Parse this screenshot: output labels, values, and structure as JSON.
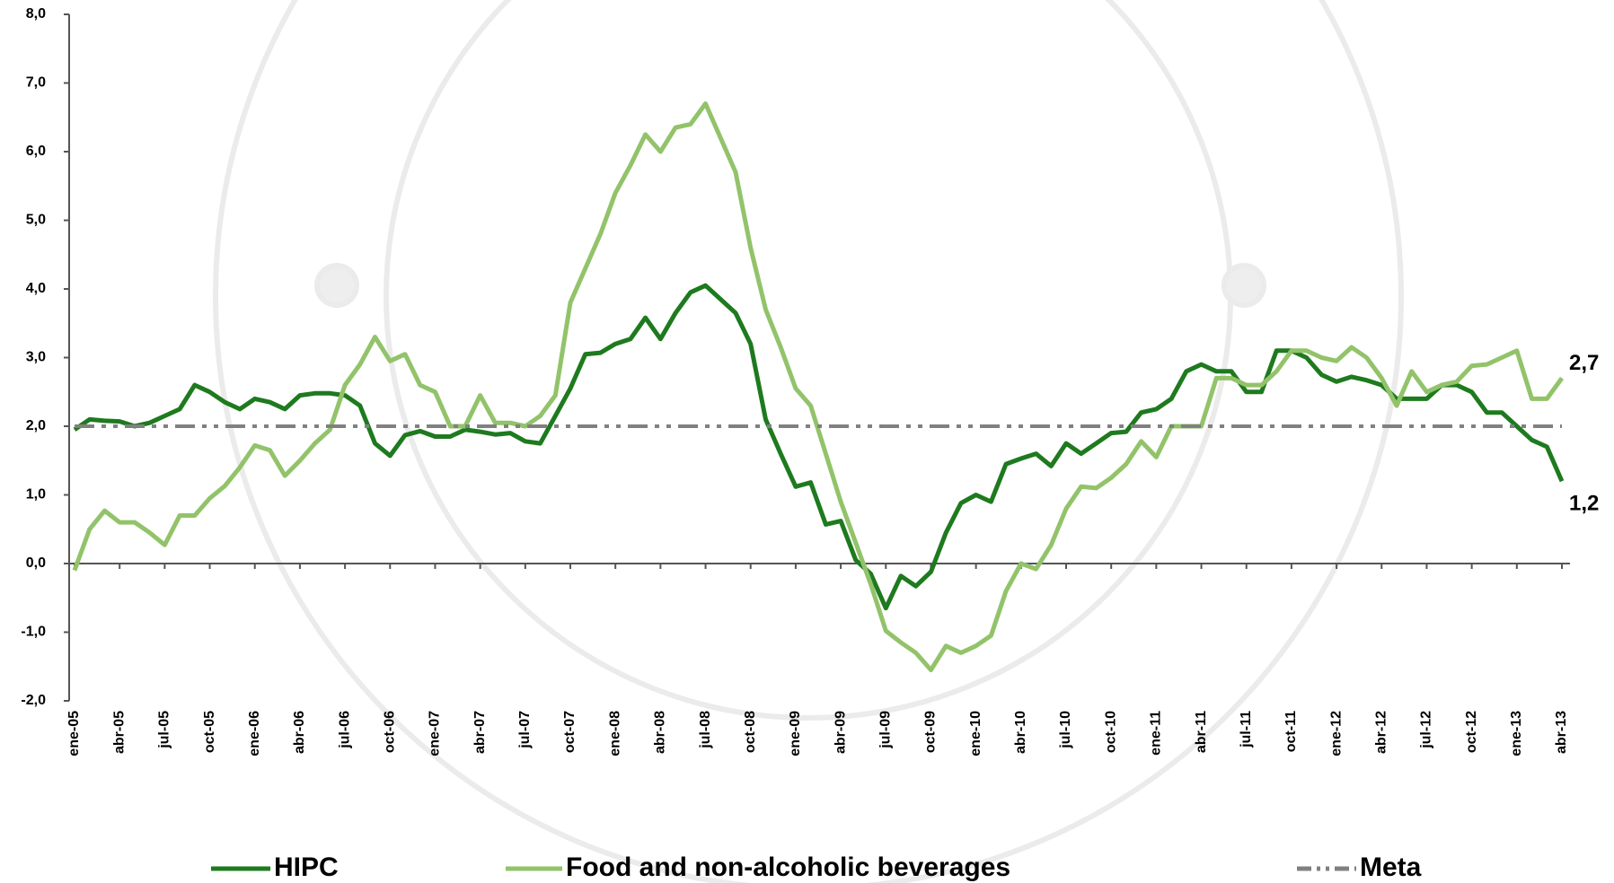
{
  "chart_data": {
    "type": "line",
    "categories": [
      "ene-05",
      null,
      null,
      "abr-05",
      null,
      null,
      "jul-05",
      null,
      null,
      "oct-05",
      null,
      null,
      "ene-06",
      null,
      null,
      "abr-06",
      null,
      null,
      "jul-06",
      null,
      null,
      "oct-06",
      null,
      null,
      "ene-07",
      null,
      null,
      "abr-07",
      null,
      null,
      "jul-07",
      null,
      null,
      "oct-07",
      null,
      null,
      "ene-08",
      null,
      null,
      "abr-08",
      null,
      null,
      "jul-08",
      null,
      null,
      "oct-08",
      null,
      null,
      "ene-09",
      null,
      null,
      "abr-09",
      null,
      null,
      "jul-09",
      null,
      null,
      "oct-09",
      null,
      null,
      "ene-10",
      null,
      null,
      "abr-10",
      null,
      null,
      "jul-10",
      null,
      null,
      "oct-10",
      null,
      null,
      "ene-11",
      null,
      null,
      "abr-11",
      null,
      null,
      "jul-11",
      null,
      null,
      "oct-11",
      null,
      null,
      "ene-12",
      null,
      null,
      "abr-12",
      null,
      null,
      "jul-12",
      null,
      null,
      "oct-12",
      null,
      null,
      "ene-13",
      null,
      null,
      "abr-13"
    ],
    "series": [
      {
        "name": "HIPC",
        "color": "#1e7a1e",
        "dash": false,
        "values": [
          1.95,
          2.1,
          2.08,
          2.07,
          2.0,
          2.05,
          2.15,
          2.25,
          2.6,
          2.5,
          2.35,
          2.25,
          2.4,
          2.35,
          2.25,
          2.45,
          2.48,
          2.48,
          2.45,
          2.3,
          1.75,
          1.57,
          1.87,
          1.93,
          1.85,
          1.85,
          1.95,
          1.92,
          1.88,
          1.9,
          1.78,
          1.75,
          2.15,
          2.55,
          3.05,
          3.07,
          3.2,
          3.27,
          3.58,
          3.27,
          3.65,
          3.95,
          4.05,
          3.85,
          3.65,
          3.2,
          2.1,
          1.6,
          1.12,
          1.18,
          0.57,
          0.62,
          0.05,
          -0.15,
          -0.65,
          -0.18,
          -0.33,
          -0.12,
          0.45,
          0.88,
          1.0,
          0.9,
          1.45,
          1.53,
          1.6,
          1.42,
          1.75,
          1.6,
          1.75,
          1.9,
          1.92,
          2.2,
          2.25,
          2.4,
          2.8,
          2.9,
          2.8,
          2.8,
          2.5,
          2.5,
          3.1,
          3.1,
          3.0,
          2.75,
          2.65,
          2.72,
          2.67,
          2.6,
          2.4,
          2.4,
          2.4,
          2.6,
          2.6,
          2.5,
          2.2,
          2.2,
          2.0,
          1.8,
          1.7,
          1.2
        ],
        "value_labels": [
          null,
          null,
          null,
          null,
          null,
          null,
          null,
          null,
          null,
          null,
          null,
          null,
          null,
          null,
          null,
          null,
          null,
          null,
          null,
          null,
          null,
          null,
          null,
          null,
          null,
          null,
          null,
          null,
          null,
          null,
          null,
          null,
          null,
          null,
          null,
          null,
          null,
          null,
          null,
          null,
          null,
          null,
          null,
          null,
          null,
          null,
          null,
          null,
          null,
          null,
          null,
          null,
          null,
          null,
          null,
          null,
          null,
          null,
          null,
          null,
          null,
          null,
          null,
          null,
          null,
          null,
          null,
          null,
          null,
          null,
          null,
          null,
          null,
          null,
          null,
          null,
          null,
          null,
          null,
          null,
          null,
          null,
          null,
          null,
          null,
          null,
          null,
          null,
          null,
          null,
          null,
          null,
          null,
          null,
          null,
          null,
          null,
          null,
          null,
          "1,2"
        ]
      },
      {
        "name": "Food and non-alcoholic beverages",
        "color": "#92c36a",
        "dash": false,
        "values": [
          -0.1,
          0.5,
          0.77,
          0.6,
          0.6,
          0.45,
          0.27,
          0.7,
          0.7,
          0.95,
          1.13,
          1.4,
          1.72,
          1.65,
          1.28,
          1.5,
          1.75,
          1.95,
          2.6,
          2.9,
          3.3,
          2.95,
          3.05,
          2.6,
          2.5,
          2.0,
          2.0,
          2.45,
          2.05,
          2.05,
          2.0,
          2.15,
          2.45,
          3.8,
          4.3,
          4.8,
          5.4,
          5.8,
          6.25,
          6.0,
          6.35,
          6.4,
          6.7,
          6.2,
          5.7,
          4.6,
          3.7,
          3.15,
          2.55,
          2.3,
          1.6,
          0.9,
          0.3,
          -0.3,
          -0.98,
          -1.15,
          -1.3,
          -1.55,
          -1.2,
          -1.3,
          -1.2,
          -1.05,
          -0.4,
          0.0,
          -0.08,
          0.27,
          0.8,
          1.12,
          1.1,
          1.25,
          1.45,
          1.78,
          1.55,
          2.0,
          2.0,
          2.0,
          2.7,
          2.7,
          2.6,
          2.6,
          2.8,
          3.1,
          3.1,
          3.0,
          2.95,
          3.15,
          3.0,
          2.7,
          2.3,
          2.8,
          2.5,
          2.6,
          2.65,
          2.88,
          2.9,
          3.0,
          3.1,
          2.4,
          2.4,
          2.7
        ],
        "value_labels": [
          null,
          null,
          null,
          null,
          null,
          null,
          null,
          null,
          null,
          null,
          null,
          null,
          null,
          null,
          null,
          null,
          null,
          null,
          null,
          null,
          null,
          null,
          null,
          null,
          null,
          null,
          null,
          null,
          null,
          null,
          null,
          null,
          null,
          null,
          null,
          null,
          null,
          null,
          null,
          null,
          null,
          null,
          null,
          null,
          null,
          null,
          null,
          null,
          null,
          null,
          null,
          null,
          null,
          null,
          null,
          null,
          null,
          null,
          null,
          null,
          null,
          null,
          null,
          null,
          null,
          null,
          null,
          null,
          null,
          null,
          null,
          null,
          null,
          null,
          null,
          null,
          null,
          null,
          null,
          null,
          null,
          null,
          null,
          null,
          null,
          null,
          null,
          null,
          null,
          null,
          null,
          null,
          null,
          null,
          null,
          null,
          null,
          null,
          null,
          "2,7"
        ]
      },
      {
        "name": "Meta",
        "color": "#808080",
        "dash": true,
        "values": [
          2,
          2,
          2,
          2,
          2,
          2,
          2,
          2,
          2,
          2,
          2,
          2,
          2,
          2,
          2,
          2,
          2,
          2,
          2,
          2,
          2,
          2,
          2,
          2,
          2,
          2,
          2,
          2,
          2,
          2,
          2,
          2,
          2,
          2,
          2,
          2,
          2,
          2,
          2,
          2,
          2,
          2,
          2,
          2,
          2,
          2,
          2,
          2,
          2,
          2,
          2,
          2,
          2,
          2,
          2,
          2,
          2,
          2,
          2,
          2,
          2,
          2,
          2,
          2,
          2,
          2,
          2,
          2,
          2,
          2,
          2,
          2,
          2,
          2,
          2,
          2,
          2,
          2,
          2,
          2,
          2,
          2,
          2,
          2,
          2,
          2,
          2,
          2,
          2,
          2,
          2,
          2,
          2,
          2,
          2,
          2,
          2,
          2,
          2,
          2
        ]
      }
    ],
    "ylim": [
      -2,
      8
    ],
    "yticks": [
      {
        "value": -2,
        "label": "-2,0"
      },
      {
        "value": -1,
        "label": "-1,0"
      },
      {
        "value": 0,
        "label": "0,0"
      },
      {
        "value": 1,
        "label": "1,0"
      },
      {
        "value": 2,
        "label": "2,0"
      },
      {
        "value": 3,
        "label": "3,0"
      },
      {
        "value": 4,
        "label": "4,0"
      },
      {
        "value": 5,
        "label": "5,0"
      },
      {
        "value": 6,
        "label": "6,0"
      },
      {
        "value": 7,
        "label": "7,0"
      },
      {
        "value": 8,
        "label": "8,0"
      }
    ],
    "legend": "bottom",
    "grid": false
  }
}
